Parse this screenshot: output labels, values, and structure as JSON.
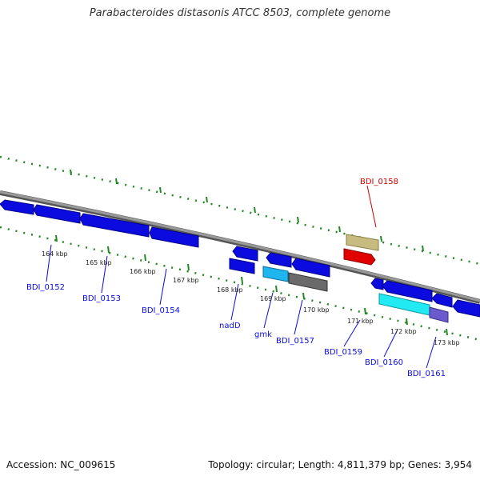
{
  "title": "Parabacteroides distasonis ATCC 8503, complete genome",
  "footer": {
    "accession": "Accession: NC_009615",
    "summary": "Topology: circular; Length: 4,811,379 bp; Genes: 3,954"
  },
  "colors": {
    "forward_gene": "#0b0be0",
    "highlight": "#cc0000",
    "backbone": "#8a8a8a",
    "tick": "#228822"
  },
  "ticks": [
    "164 kbp",
    "165 kbp",
    "166 kbp",
    "167 kbp",
    "168 kbp",
    "169 kbp",
    "170 kbp",
    "171 kbp",
    "172 kbp",
    "173 kbp"
  ],
  "genes": [
    {
      "label": "BDI_0152",
      "color": "#0b0be0"
    },
    {
      "label": "BDI_0153",
      "color": "#0b0be0"
    },
    {
      "label": "BDI_0154",
      "color": "#0b0be0"
    },
    {
      "label": "nadD",
      "color": "#0b0be0"
    },
    {
      "label": "gmk",
      "color": "#0b0be0"
    },
    {
      "label": "BDI_0157",
      "color": "#0b0be0"
    },
    {
      "label": "BDI_0158",
      "color": "#cc0000"
    },
    {
      "label": "BDI_0159",
      "color": "#0b0be0"
    },
    {
      "label": "BDI_0160",
      "color": "#0b0be0"
    },
    {
      "label": "BDI_0161",
      "color": "#0b0be0"
    }
  ]
}
